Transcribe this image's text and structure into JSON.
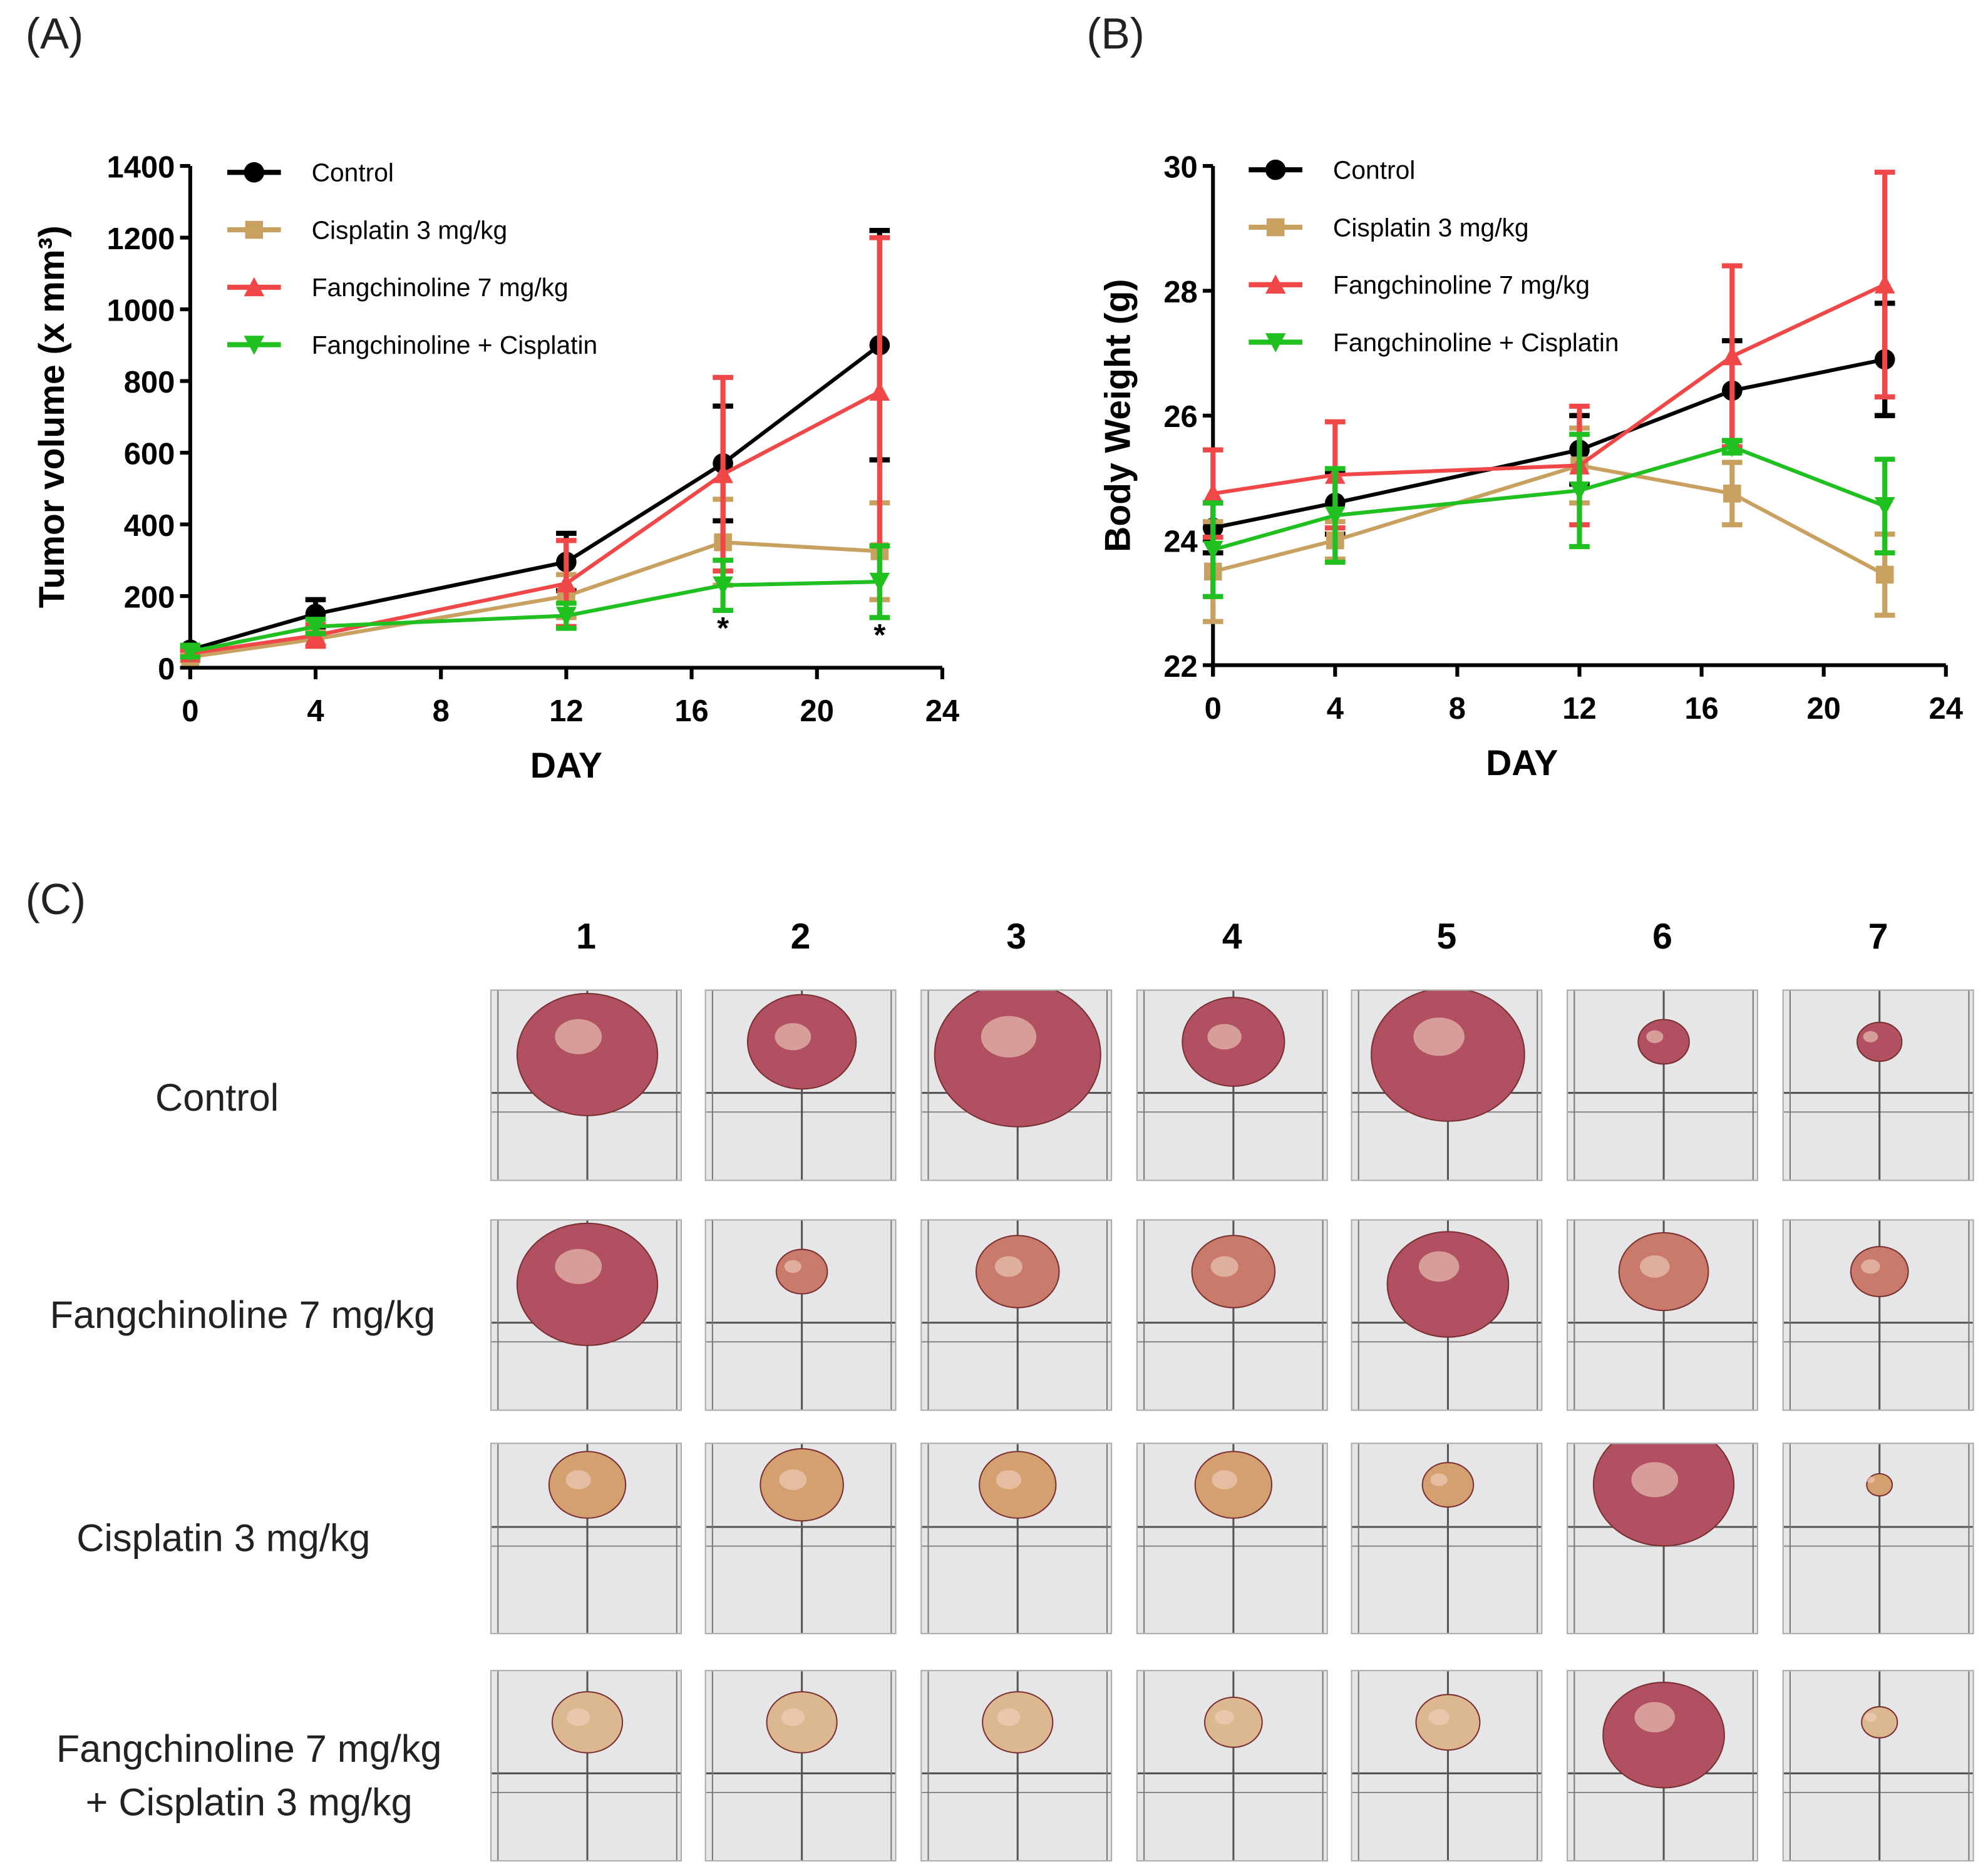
{
  "panels": {
    "a": "(A)",
    "b": "(B)",
    "c": "(C)"
  },
  "chart_data": [
    {
      "type": "line",
      "title": "",
      "xlabel": "DAY",
      "ylabel": "Tumor volume (x mm³)",
      "xlim": [
        0,
        24
      ],
      "ylim": [
        0,
        1400
      ],
      "xticks": [
        0,
        4,
        8,
        12,
        16,
        20,
        24
      ],
      "yticks": [
        0,
        200,
        400,
        600,
        800,
        1000,
        1200,
        1400
      ],
      "x": [
        0,
        4,
        12,
        17,
        22
      ],
      "legend_position": "top-left",
      "annotations": [
        {
          "text": "*",
          "x": 17
        },
        {
          "text": "*",
          "x": 22
        }
      ],
      "series": [
        {
          "name": "Control",
          "color": "#000000",
          "marker": "circle",
          "values": [
            50,
            150,
            295,
            570,
            900
          ],
          "error": [
            10,
            40,
            80,
            160,
            320
          ]
        },
        {
          "name": "Cisplatin 3 mg/kg",
          "color": "#c8a060",
          "marker": "square",
          "values": [
            30,
            80,
            200,
            350,
            325
          ],
          "error": [
            10,
            20,
            60,
            120,
            135
          ]
        },
        {
          "name": "Fangchinoline 7 mg/kg",
          "color": "#f04848",
          "marker": "triangle-up",
          "values": [
            40,
            90,
            235,
            540,
            770
          ],
          "error": [
            10,
            30,
            120,
            270,
            430
          ]
        },
        {
          "name": "Fangchinoline + Cisplatin",
          "color": "#20c020",
          "marker": "triangle-down",
          "values": [
            45,
            115,
            145,
            230,
            240
          ],
          "error": [
            15,
            20,
            35,
            70,
            100
          ]
        }
      ]
    },
    {
      "type": "line",
      "title": "",
      "xlabel": "DAY",
      "ylabel": "Body Weight (g)",
      "xlim": [
        0,
        24
      ],
      "ylim": [
        22,
        30
      ],
      "xticks": [
        0,
        4,
        8,
        12,
        16,
        20,
        24
      ],
      "yticks": [
        22,
        24,
        26,
        28,
        30
      ],
      "x": [
        0,
        4,
        12,
        17,
        22
      ],
      "legend_position": "top-left",
      "series": [
        {
          "name": "Control",
          "color": "#000000",
          "marker": "circle",
          "values": [
            24.2,
            24.6,
            25.45,
            26.4,
            26.9
          ],
          "error": [
            0.4,
            0.5,
            0.55,
            0.8,
            0.9
          ]
        },
        {
          "name": "Cisplatin 3 mg/kg",
          "color": "#c8a060",
          "marker": "square",
          "values": [
            23.5,
            24.0,
            25.2,
            24.75,
            23.45
          ],
          "error": [
            0.8,
            0.3,
            0.6,
            0.5,
            0.65
          ]
        },
        {
          "name": "Fangchinoline 7 mg/kg",
          "color": "#f04848",
          "marker": "triangle-up",
          "values": [
            24.75,
            25.05,
            25.2,
            26.95,
            28.1
          ],
          "error": [
            0.7,
            0.85,
            0.95,
            1.45,
            1.8
          ]
        },
        {
          "name": "Fangchinoline + Cisplatin",
          "color": "#20c020",
          "marker": "triangle-down",
          "values": [
            23.85,
            24.4,
            24.8,
            25.5,
            24.55
          ],
          "error": [
            0.75,
            0.75,
            0.9,
            0.1,
            0.75
          ]
        }
      ]
    }
  ],
  "photos": {
    "columns": [
      "1",
      "2",
      "3",
      "4",
      "5",
      "6",
      "7"
    ],
    "rows": [
      {
        "label": "Control"
      },
      {
        "label": "Fangchinoline  7 mg/kg"
      },
      {
        "label": "Cisplatin  3 mg/kg"
      },
      {
        "label": "Fangchinoline  7 mg/kg\n+  Cisplatin  3 mg/kg"
      }
    ]
  }
}
